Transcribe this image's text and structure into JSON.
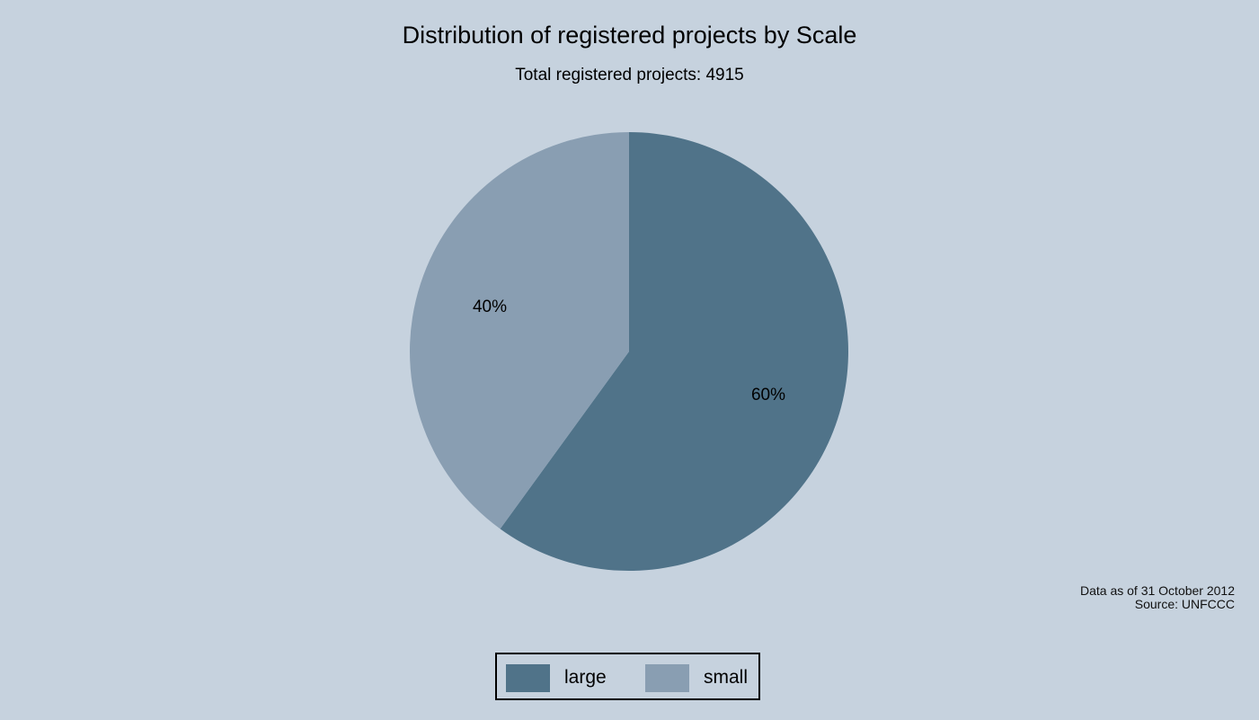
{
  "title": "Distribution of registered projects by Scale",
  "subtitle": "Total registered projects: 4915",
  "note": {
    "line1": "Data as of 31 October 2012",
    "line2": "Source: UNFCCC"
  },
  "colors": {
    "background": "#c6d2de",
    "large": "#507389",
    "small": "#899eb2"
  },
  "slices": [
    {
      "label": "large",
      "pct_label": "60%",
      "color": "#507389"
    },
    {
      "label": "small",
      "pct_label": "40%",
      "color": "#899eb2"
    }
  ],
  "legend": {
    "items": [
      {
        "label": "large",
        "color": "#507389"
      },
      {
        "label": "small",
        "color": "#899eb2"
      }
    ]
  },
  "chart_data": {
    "type": "pie",
    "title": "Distribution of registered projects by Scale",
    "subtitle": "Total registered projects: 4915",
    "categories": [
      "large",
      "small"
    ],
    "values": [
      60,
      40
    ],
    "value_labels": [
      "60%",
      "40%"
    ],
    "total": 4915,
    "legend": {
      "position": "bottom",
      "entries": [
        "large",
        "small"
      ]
    },
    "annotations": [
      "Data as of 31 October 2012",
      "Source: UNFCCC"
    ]
  }
}
